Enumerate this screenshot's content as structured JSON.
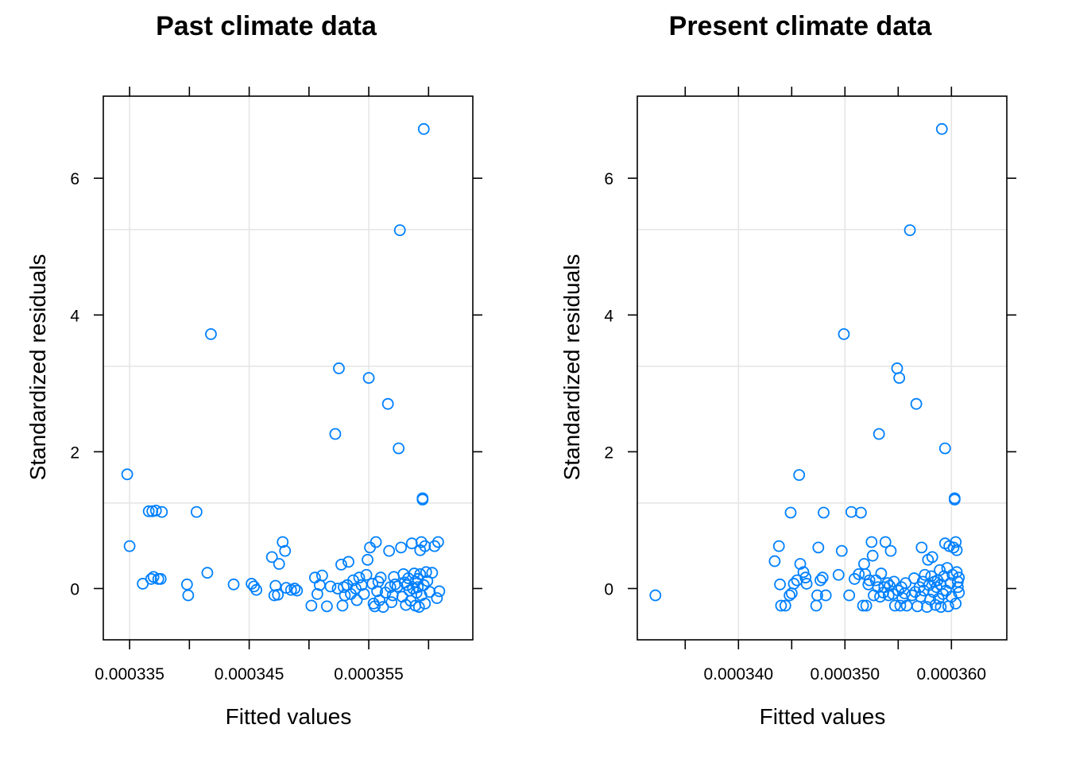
{
  "chart_data": [
    {
      "type": "scatter",
      "title": "Past climate data",
      "xlabel": "Fitted values",
      "ylabel": "Standardized residuals",
      "xlim": [
        0.0003328,
        0.0003637
      ],
      "ylim": [
        -0.75,
        7.2
      ],
      "x_ticks": [
        0.000335,
        0.00034,
        0.000345,
        0.00035,
        0.000355,
        0.00036
      ],
      "x_tick_labels": [
        "0.000335",
        "",
        "0.000345",
        "",
        "0.000355",
        ""
      ],
      "y_ticks": [
        0,
        2,
        4,
        6
      ],
      "y_tick_labels": [
        "0",
        "2",
        "4",
        "6"
      ],
      "grid": true,
      "marker": "open-circle",
      "color": "#0080ff",
      "points": [
        [
          0.0003348,
          1.67
        ],
        [
          0.000335,
          0.62
        ],
        [
          0.0003361,
          0.07
        ],
        [
          0.0003366,
          1.13
        ],
        [
          0.0003368,
          0.14
        ],
        [
          0.0003369,
          1.13
        ],
        [
          0.000337,
          0.17
        ],
        [
          0.0003372,
          1.14
        ],
        [
          0.0003374,
          0.14
        ],
        [
          0.0003376,
          0.14
        ],
        [
          0.0003377,
          1.12
        ],
        [
          0.0003398,
          0.06
        ],
        [
          0.0003399,
          -0.1
        ],
        [
          0.0003406,
          1.12
        ],
        [
          0.0003415,
          0.23
        ],
        [
          0.0003418,
          3.72
        ],
        [
          0.0003437,
          0.06
        ],
        [
          0.0003452,
          0.07
        ],
        [
          0.0003454,
          0.03
        ],
        [
          0.0003456,
          -0.02
        ],
        [
          0.0003469,
          0.46
        ],
        [
          0.0003471,
          -0.1
        ],
        [
          0.0003472,
          0.04
        ],
        [
          0.0003474,
          -0.09
        ],
        [
          0.0003475,
          0.36
        ],
        [
          0.0003478,
          0.68
        ],
        [
          0.000348,
          0.55
        ],
        [
          0.0003481,
          0.01
        ],
        [
          0.0003485,
          -0.02
        ],
        [
          0.0003488,
          0.0
        ],
        [
          0.000349,
          -0.03
        ],
        [
          0.0003502,
          -0.25
        ],
        [
          0.0003505,
          0.16
        ],
        [
          0.0003507,
          -0.08
        ],
        [
          0.0003509,
          0.05
        ],
        [
          0.0003511,
          0.19
        ],
        [
          0.0003515,
          -0.26
        ],
        [
          0.0003518,
          0.03
        ],
        [
          0.0003522,
          2.26
        ],
        [
          0.0003524,
          0.0
        ],
        [
          0.0003525,
          3.22
        ],
        [
          0.0003527,
          0.35
        ],
        [
          0.0003528,
          -0.25
        ],
        [
          0.0003529,
          0.02
        ],
        [
          0.000353,
          -0.1
        ],
        [
          0.0003532,
          0.05
        ],
        [
          0.0003533,
          0.39
        ],
        [
          0.0003535,
          -0.08
        ],
        [
          0.0003537,
          0.12
        ],
        [
          0.0003539,
          0.0
        ],
        [
          0.000354,
          -0.17
        ],
        [
          0.0003542,
          0.16
        ],
        [
          0.0003544,
          0.05
        ],
        [
          0.0003546,
          -0.08
        ],
        [
          0.0003548,
          0.2
        ],
        [
          0.0003549,
          0.42
        ],
        [
          0.000355,
          3.08
        ],
        [
          0.0003551,
          0.6
        ],
        [
          0.0003553,
          0.07
        ],
        [
          0.0003554,
          -0.22
        ],
        [
          0.0003555,
          -0.26
        ],
        [
          0.0003556,
          0.68
        ],
        [
          0.0003557,
          -0.04
        ],
        [
          0.0003558,
          0.1
        ],
        [
          0.0003559,
          -0.17
        ],
        [
          0.000356,
          0.16
        ],
        [
          0.0003562,
          -0.27
        ],
        [
          0.0003564,
          -0.06
        ],
        [
          0.0003566,
          2.7
        ],
        [
          0.0003567,
          0.55
        ],
        [
          0.0003568,
          0.02
        ],
        [
          0.0003569,
          -0.2
        ],
        [
          0.000357,
          -0.1
        ],
        [
          0.0003571,
          0.17
        ],
        [
          0.0003572,
          0.06
        ],
        [
          0.0003574,
          0.03
        ],
        [
          0.0003575,
          2.05
        ],
        [
          0.0003576,
          5.24
        ],
        [
          0.0003577,
          0.6
        ],
        [
          0.0003578,
          -0.12
        ],
        [
          0.0003579,
          0.21
        ],
        [
          0.000358,
          0.09
        ],
        [
          0.0003581,
          -0.24
        ],
        [
          0.0003582,
          0.05
        ],
        [
          0.0003583,
          0.15
        ],
        [
          0.0003584,
          -0.03
        ],
        [
          0.0003585,
          -0.18
        ],
        [
          0.0003586,
          0.66
        ],
        [
          0.0003587,
          0.0
        ],
        [
          0.0003588,
          0.22
        ],
        [
          0.0003589,
          -0.25
        ],
        [
          0.0003589,
          0.1
        ],
        [
          0.000359,
          -0.06
        ],
        [
          0.0003591,
          0.02
        ],
        [
          0.0003591,
          0.14
        ],
        [
          0.0003592,
          -0.27
        ],
        [
          0.0003593,
          0.21
        ],
        [
          0.0003593,
          0.56
        ],
        [
          0.0003594,
          0.68
        ],
        [
          0.0003594,
          -0.1
        ],
        [
          0.0003595,
          1.3
        ],
        [
          0.0003595,
          1.32
        ],
        [
          0.0003596,
          6.72
        ],
        [
          0.0003596,
          0.05
        ],
        [
          0.0003597,
          -0.22
        ],
        [
          0.0003597,
          0.62
        ],
        [
          0.0003598,
          0.24
        ],
        [
          0.0003599,
          0.11
        ],
        [
          0.0003601,
          -0.05
        ],
        [
          0.0003603,
          0.23
        ],
        [
          0.0003605,
          0.62
        ],
        [
          0.0003607,
          -0.14
        ],
        [
          0.0003608,
          0.68
        ],
        [
          0.0003609,
          -0.04
        ]
      ]
    },
    {
      "type": "scatter",
      "title": "Present climate data",
      "xlabel": "Fitted values",
      "ylabel": "Standardized residuals",
      "xlim": [
        0.0003305,
        0.0003652
      ],
      "ylim": [
        -0.75,
        7.2
      ],
      "x_ticks": [
        0.000335,
        0.00034,
        0.000345,
        0.00035,
        0.000355,
        0.00036
      ],
      "x_tick_labels": [
        "",
        "0.000340",
        "",
        "0.000350",
        "",
        "0.000360"
      ],
      "y_ticks": [
        0,
        2,
        4,
        6
      ],
      "y_tick_labels": [
        "0",
        "2",
        "4",
        "6"
      ],
      "grid": true,
      "marker": "open-circle",
      "color": "#0080ff",
      "points": [
        [
          0.0003322,
          -0.1
        ],
        [
          0.0003434,
          0.4
        ],
        [
          0.0003438,
          0.62
        ],
        [
          0.0003439,
          0.06
        ],
        [
          0.000344,
          -0.25
        ],
        [
          0.0003444,
          -0.25
        ],
        [
          0.0003448,
          -0.1
        ],
        [
          0.0003449,
          1.11
        ],
        [
          0.000345,
          -0.07
        ],
        [
          0.0003452,
          0.07
        ],
        [
          0.0003455,
          0.12
        ],
        [
          0.0003457,
          1.66
        ],
        [
          0.0003458,
          0.36
        ],
        [
          0.0003461,
          0.24
        ],
        [
          0.0003463,
          0.16
        ],
        [
          0.0003464,
          0.07
        ],
        [
          0.0003473,
          -0.25
        ],
        [
          0.0003474,
          -0.1
        ],
        [
          0.0003475,
          0.6
        ],
        [
          0.0003477,
          0.12
        ],
        [
          0.0003479,
          0.16
        ],
        [
          0.000348,
          1.11
        ],
        [
          0.0003482,
          -0.1
        ],
        [
          0.0003494,
          0.2
        ],
        [
          0.0003497,
          0.55
        ],
        [
          0.0003499,
          3.72
        ],
        [
          0.0003504,
          -0.1
        ],
        [
          0.0003506,
          1.12
        ],
        [
          0.0003509,
          0.14
        ],
        [
          0.0003513,
          0.21
        ],
        [
          0.0003515,
          1.11
        ],
        [
          0.0003517,
          -0.25
        ],
        [
          0.0003518,
          0.36
        ],
        [
          0.0003519,
          0.21
        ],
        [
          0.000352,
          -0.25
        ],
        [
          0.0003522,
          0.06
        ],
        [
          0.0003523,
          0.12
        ],
        [
          0.0003525,
          0.68
        ],
        [
          0.0003526,
          0.48
        ],
        [
          0.0003527,
          -0.1
        ],
        [
          0.0003529,
          0.12
        ],
        [
          0.0003531,
          0.02
        ],
        [
          0.0003532,
          2.26
        ],
        [
          0.0003533,
          -0.12
        ],
        [
          0.0003534,
          0.22
        ],
        [
          0.0003536,
          -0.06
        ],
        [
          0.0003537,
          0.02
        ],
        [
          0.0003538,
          0.68
        ],
        [
          0.000354,
          0.08
        ],
        [
          0.0003541,
          -0.1
        ],
        [
          0.0003542,
          0.04
        ],
        [
          0.0003543,
          0.55
        ],
        [
          0.0003545,
          -0.08
        ],
        [
          0.0003546,
          0.1
        ],
        [
          0.0003547,
          -0.25
        ],
        [
          0.0003549,
          3.22
        ],
        [
          0.000355,
          -0.03
        ],
        [
          0.0003551,
          3.08
        ],
        [
          0.0003552,
          -0.25
        ],
        [
          0.0003553,
          0.02
        ],
        [
          0.0003554,
          -0.14
        ],
        [
          0.0003556,
          -0.07
        ],
        [
          0.0003557,
          0.08
        ],
        [
          0.0003558,
          -0.25
        ],
        [
          0.0003561,
          5.24
        ],
        [
          0.0003563,
          -0.1
        ],
        [
          0.0003565,
          0.15
        ],
        [
          0.0003566,
          -0.05
        ],
        [
          0.0003567,
          2.7
        ],
        [
          0.0003568,
          -0.26
        ],
        [
          0.000357,
          0.02
        ],
        [
          0.0003571,
          -0.12
        ],
        [
          0.0003572,
          0.6
        ],
        [
          0.0003573,
          0.1
        ],
        [
          0.0003574,
          -0.03
        ],
        [
          0.0003575,
          0.2
        ],
        [
          0.0003577,
          -0.27
        ],
        [
          0.0003578,
          0.42
        ],
        [
          0.0003579,
          0.05
        ],
        [
          0.000358,
          -0.16
        ],
        [
          0.0003581,
          0.18
        ],
        [
          0.0003582,
          0.46
        ],
        [
          0.0003583,
          -0.05
        ],
        [
          0.0003584,
          0.1
        ],
        [
          0.0003585,
          -0.24
        ],
        [
          0.0003586,
          0.02
        ],
        [
          0.0003587,
          0.12
        ],
        [
          0.0003588,
          -0.15
        ],
        [
          0.0003589,
          0.27
        ],
        [
          0.000359,
          -0.27
        ],
        [
          0.000359,
          0.06
        ],
        [
          0.0003591,
          6.72
        ],
        [
          0.0003592,
          -0.08
        ],
        [
          0.0003593,
          0.18
        ],
        [
          0.0003594,
          0.66
        ],
        [
          0.0003594,
          2.05
        ],
        [
          0.0003595,
          -0.03
        ],
        [
          0.0003596,
          0.3
        ],
        [
          0.0003597,
          -0.26
        ],
        [
          0.0003598,
          0.62
        ],
        [
          0.0003599,
          0.08
        ],
        [
          0.00036,
          -0.12
        ],
        [
          0.0003601,
          0.2
        ],
        [
          0.0003602,
          0.6
        ],
        [
          0.0003603,
          1.3
        ],
        [
          0.0003603,
          1.32
        ],
        [
          0.0003604,
          0.68
        ],
        [
          0.0003604,
          -0.22
        ],
        [
          0.0003605,
          0.56
        ],
        [
          0.0003605,
          0.24
        ],
        [
          0.0003606,
          0.02
        ],
        [
          0.0003606,
          0.1
        ],
        [
          0.0003607,
          -0.06
        ],
        [
          0.0003607,
          0.16
        ]
      ]
    }
  ]
}
